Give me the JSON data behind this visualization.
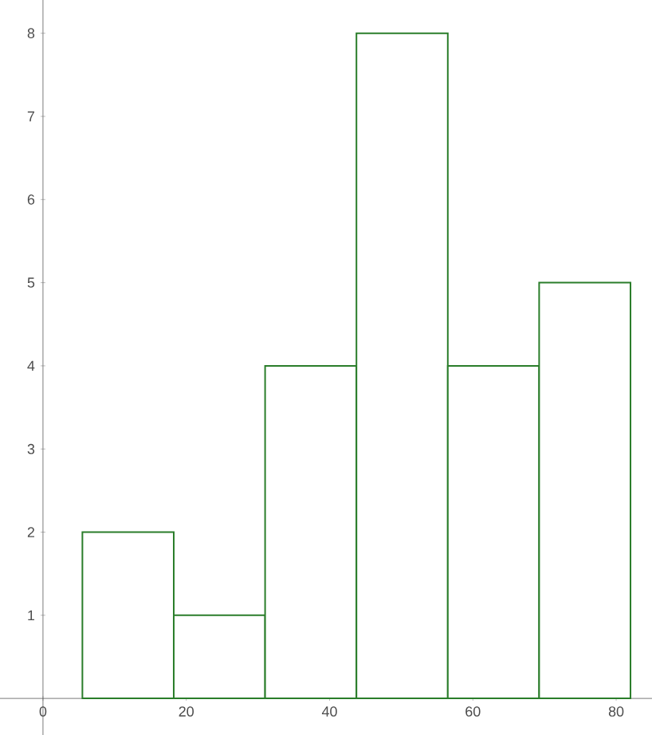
{
  "chart_data": {
    "type": "histogram",
    "bins": [
      5.5,
      18.25,
      31,
      43.75,
      56.5,
      69.25,
      82
    ],
    "values": [
      2,
      1,
      4,
      8,
      4,
      5
    ],
    "color": "#2a7d2a",
    "xlim": [
      -6,
      85
    ],
    "ylim": [
      -0.44,
      8.4
    ],
    "xticks": [
      0,
      20,
      40,
      60,
      80
    ],
    "yticks": [
      1,
      2,
      3,
      4,
      5,
      6,
      7,
      8
    ],
    "grid": false
  }
}
